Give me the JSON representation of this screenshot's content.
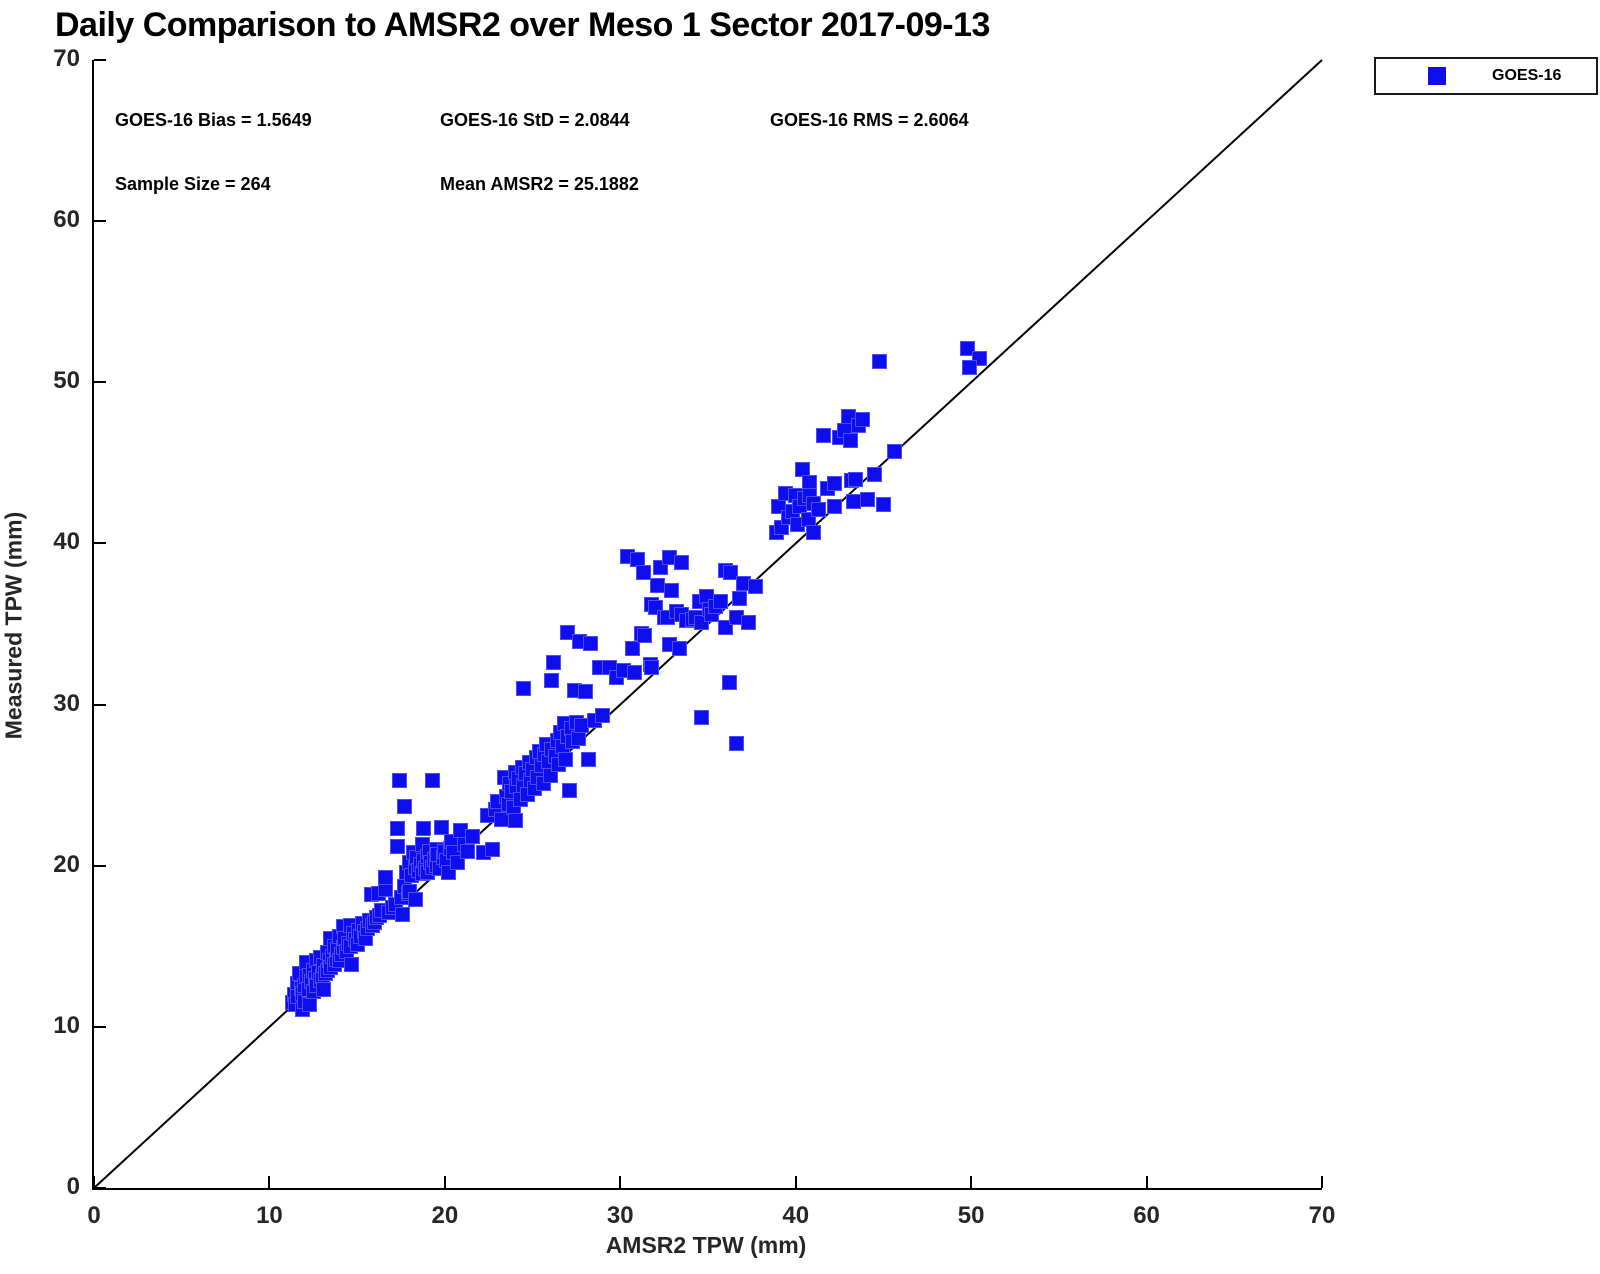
{
  "figure": {
    "title": "Daily Comparison to AMSR2 over Meso 1 Sector 2017-09-13",
    "stats": {
      "bias": "GOES-16 Bias = 1.5649",
      "std": "GOES-16 StD = 2.0844",
      "rms": "GOES-16 RMS = 2.6064",
      "sample": "Sample Size = 264",
      "mean": "Mean AMSR2 = 25.1882"
    },
    "legend": {
      "label": "GOES-16"
    },
    "colors": {
      "marker": "#0d0df0",
      "marker_edge": "#4d4df8",
      "axis": "#000000",
      "tick_text": "#262626",
      "reference_line": "#000000"
    }
  },
  "chart_data": {
    "type": "scatter",
    "title": "Daily Comparison to AMSR2 over Meso 1 Sector 2017-09-13",
    "xlabel": "AMSR2 TPW (mm)",
    "ylabel": "Measured TPW (mm)",
    "xlim": [
      0,
      70
    ],
    "ylim": [
      0,
      70
    ],
    "xticks": [
      0,
      10,
      20,
      30,
      40,
      50,
      60,
      70
    ],
    "yticks": [
      0,
      10,
      20,
      30,
      40,
      50,
      60,
      70
    ],
    "grid": false,
    "legend_position": "upper-right-outside",
    "reference_line": {
      "from": [
        0,
        0
      ],
      "to": [
        70,
        70
      ],
      "color": "#000000",
      "width": 2
    },
    "annotations": {
      "goes16_bias": 1.5649,
      "goes16_std": 2.0844,
      "goes16_rms": 2.6064,
      "sample_size": 264,
      "mean_amsr2": 25.1882
    },
    "series": [
      {
        "name": "GOES-16",
        "marker": "square",
        "color": "#0d0df0",
        "points": [
          [
            11.3,
            11.5
          ],
          [
            11.4,
            12.0
          ],
          [
            11.5,
            11.4
          ],
          [
            11.6,
            12.7
          ],
          [
            11.6,
            11.9
          ],
          [
            11.7,
            13.3
          ],
          [
            11.8,
            12.4
          ],
          [
            11.9,
            11.1
          ],
          [
            11.9,
            12.1
          ],
          [
            12.0,
            12.6
          ],
          [
            12.0,
            11.6
          ],
          [
            12.1,
            13.1
          ],
          [
            12.1,
            14.0
          ],
          [
            12.2,
            12.3
          ],
          [
            12.3,
            11.4
          ],
          [
            12.3,
            13.2
          ],
          [
            12.4,
            12.8
          ],
          [
            12.5,
            13.5
          ],
          [
            12.5,
            12.2
          ],
          [
            12.6,
            13.0
          ],
          [
            12.7,
            14.1
          ],
          [
            12.7,
            12.6
          ],
          [
            12.8,
            13.4
          ],
          [
            12.9,
            12.9
          ],
          [
            12.9,
            14.3
          ],
          [
            13.0,
            13.1
          ],
          [
            13.1,
            12.3
          ],
          [
            13.1,
            13.8
          ],
          [
            13.2,
            13.3
          ],
          [
            13.3,
            14.6
          ],
          [
            13.3,
            13.5
          ],
          [
            13.4,
            14.1
          ],
          [
            13.5,
            13.7
          ],
          [
            13.5,
            15.5
          ],
          [
            13.6,
            14.4
          ],
          [
            13.7,
            13.9
          ],
          [
            13.7,
            15.0
          ],
          [
            13.8,
            14.2
          ],
          [
            13.9,
            14.8
          ],
          [
            14.0,
            14.1
          ],
          [
            14.0,
            15.6
          ],
          [
            14.1,
            14.5
          ],
          [
            14.2,
            16.2
          ],
          [
            14.2,
            14.9
          ],
          [
            14.3,
            15.5
          ],
          [
            14.4,
            14.7
          ],
          [
            14.5,
            15.2
          ],
          [
            14.6,
            16.3
          ],
          [
            14.6,
            15.0
          ],
          [
            14.7,
            13.9
          ],
          [
            14.8,
            15.8
          ],
          [
            14.9,
            15.4
          ],
          [
            15.0,
            15.1
          ],
          [
            15.1,
            16.0
          ],
          [
            15.2,
            15.6
          ],
          [
            15.3,
            16.4
          ],
          [
            15.4,
            15.9
          ],
          [
            15.5,
            15.5
          ],
          [
            15.6,
            16.1
          ],
          [
            15.7,
            16.6
          ],
          [
            15.8,
            18.2
          ],
          [
            15.9,
            16.3
          ],
          [
            16.0,
            16.5
          ],
          [
            16.1,
            16.8
          ],
          [
            16.2,
            18.3
          ],
          [
            16.3,
            16.9
          ],
          [
            16.4,
            17.2
          ],
          [
            16.6,
            18.5
          ],
          [
            16.6,
            19.3
          ],
          [
            16.8,
            17.1
          ],
          [
            17.0,
            17.4
          ],
          [
            17.2,
            17.6
          ],
          [
            17.3,
            21.2
          ],
          [
            17.3,
            22.3
          ],
          [
            17.4,
            25.3
          ],
          [
            17.5,
            18.0
          ],
          [
            17.6,
            17.0
          ],
          [
            17.7,
            23.7
          ],
          [
            17.7,
            18.7
          ],
          [
            17.8,
            19.6
          ],
          [
            17.9,
            18.3
          ],
          [
            18.0,
            18.4
          ],
          [
            18.0,
            20.2
          ],
          [
            18.1,
            19.4
          ],
          [
            18.2,
            20.8
          ],
          [
            18.3,
            17.9
          ],
          [
            18.3,
            19.9
          ],
          [
            18.4,
            20.5
          ],
          [
            18.5,
            19.7
          ],
          [
            18.6,
            20.1
          ],
          [
            18.7,
            21.3
          ],
          [
            18.7,
            19.5
          ],
          [
            18.8,
            22.3
          ],
          [
            18.8,
            20.3
          ],
          [
            18.9,
            19.8
          ],
          [
            19.0,
            20.6
          ],
          [
            19.0,
            19.6
          ],
          [
            19.1,
            20.9
          ],
          [
            19.2,
            20.2
          ],
          [
            19.3,
            25.3
          ],
          [
            19.3,
            19.9
          ],
          [
            19.4,
            20.4
          ],
          [
            19.5,
            21.0
          ],
          [
            19.5,
            20.0
          ],
          [
            19.6,
            20.7
          ],
          [
            19.7,
            19.8
          ],
          [
            19.8,
            22.4
          ],
          [
            19.9,
            20.5
          ],
          [
            20.0,
            20.9
          ],
          [
            20.1,
            20.3
          ],
          [
            20.2,
            19.6
          ],
          [
            20.3,
            21.1
          ],
          [
            20.4,
            21.5
          ],
          [
            20.5,
            20.8
          ],
          [
            20.7,
            20.2
          ],
          [
            20.9,
            22.2
          ],
          [
            21.1,
            21.3
          ],
          [
            21.3,
            20.9
          ],
          [
            21.6,
            21.8
          ],
          [
            22.2,
            20.8
          ],
          [
            22.4,
            23.1
          ],
          [
            22.7,
            21.0
          ],
          [
            22.9,
            23.5
          ],
          [
            23.0,
            24.0
          ],
          [
            23.2,
            22.9
          ],
          [
            23.4,
            25.5
          ],
          [
            23.5,
            24.3
          ],
          [
            23.6,
            23.8
          ],
          [
            23.7,
            25.1
          ],
          [
            23.8,
            24.6
          ],
          [
            23.9,
            23.6
          ],
          [
            24.0,
            22.8
          ],
          [
            24.0,
            25.8
          ],
          [
            24.1,
            24.9
          ],
          [
            24.2,
            25.4
          ],
          [
            24.3,
            24.1
          ],
          [
            24.4,
            26.1
          ],
          [
            24.5,
            25.0
          ],
          [
            24.5,
            31.0
          ],
          [
            24.6,
            25.7
          ],
          [
            24.7,
            24.4
          ],
          [
            24.8,
            26.4
          ],
          [
            24.9,
            25.3
          ],
          [
            25.0,
            26.0
          ],
          [
            25.1,
            24.8
          ],
          [
            25.2,
            26.7
          ],
          [
            25.3,
            25.5
          ],
          [
            25.4,
            27.1
          ],
          [
            25.5,
            26.2
          ],
          [
            25.6,
            25.1
          ],
          [
            25.7,
            26.9
          ],
          [
            25.8,
            27.5
          ],
          [
            25.9,
            26.5
          ],
          [
            26.0,
            25.6
          ],
          [
            26.1,
            31.5
          ],
          [
            26.1,
            27.2
          ],
          [
            26.2,
            32.6
          ],
          [
            26.3,
            26.8
          ],
          [
            26.4,
            27.8
          ],
          [
            26.5,
            26.3
          ],
          [
            26.6,
            28.3
          ],
          [
            26.7,
            27.4
          ],
          [
            26.8,
            28.8
          ],
          [
            26.9,
            26.6
          ],
          [
            27.0,
            34.5
          ],
          [
            27.0,
            28.0
          ],
          [
            27.1,
            24.7
          ],
          [
            27.2,
            28.5
          ],
          [
            27.3,
            27.7
          ],
          [
            27.4,
            30.9
          ],
          [
            27.5,
            28.9
          ],
          [
            27.6,
            27.9
          ],
          [
            27.7,
            33.9
          ],
          [
            27.8,
            28.7
          ],
          [
            28.0,
            30.8
          ],
          [
            28.2,
            26.6
          ],
          [
            28.3,
            33.8
          ],
          [
            28.5,
            29.0
          ],
          [
            28.8,
            32.3
          ],
          [
            29.0,
            29.3
          ],
          [
            29.4,
            32.3
          ],
          [
            29.8,
            31.7
          ],
          [
            30.2,
            32.1
          ],
          [
            30.4,
            39.2
          ],
          [
            30.7,
            33.5
          ],
          [
            30.8,
            32.0
          ],
          [
            31.0,
            39.0
          ],
          [
            31.2,
            34.4
          ],
          [
            31.3,
            38.2
          ],
          [
            31.4,
            34.3
          ],
          [
            31.7,
            32.5
          ],
          [
            31.8,
            36.2
          ],
          [
            31.8,
            32.3
          ],
          [
            32.0,
            36.0
          ],
          [
            32.1,
            37.4
          ],
          [
            32.3,
            38.5
          ],
          [
            32.5,
            35.4
          ],
          [
            32.7,
            35.4
          ],
          [
            32.8,
            39.1
          ],
          [
            32.8,
            33.7
          ],
          [
            32.9,
            37.1
          ],
          [
            33.2,
            35.8
          ],
          [
            33.4,
            33.5
          ],
          [
            33.5,
            35.6
          ],
          [
            33.5,
            38.8
          ],
          [
            33.8,
            35.2
          ],
          [
            34.1,
            35.3
          ],
          [
            34.3,
            35.4
          ],
          [
            34.5,
            36.4
          ],
          [
            34.6,
            29.2
          ],
          [
            34.6,
            35.1
          ],
          [
            34.9,
            36.7
          ],
          [
            35.1,
            35.9
          ],
          [
            35.2,
            35.6
          ],
          [
            35.4,
            36.1
          ],
          [
            35.7,
            36.4
          ],
          [
            36.0,
            34.8
          ],
          [
            36.0,
            38.3
          ],
          [
            36.2,
            31.4
          ],
          [
            36.3,
            38.2
          ],
          [
            36.6,
            27.6
          ],
          [
            36.6,
            35.4
          ],
          [
            36.8,
            36.6
          ],
          [
            37.0,
            37.5
          ],
          [
            37.3,
            35.1
          ],
          [
            37.7,
            37.3
          ],
          [
            38.9,
            40.7
          ],
          [
            39.0,
            42.3
          ],
          [
            39.2,
            41.0
          ],
          [
            39.4,
            43.1
          ],
          [
            39.6,
            41.6
          ],
          [
            39.8,
            42.0
          ],
          [
            40.0,
            43.0
          ],
          [
            40.1,
            41.2
          ],
          [
            40.2,
            42.3
          ],
          [
            40.4,
            44.6
          ],
          [
            40.5,
            42.8
          ],
          [
            40.7,
            41.5
          ],
          [
            40.8,
            43.8
          ],
          [
            40.8,
            43.0
          ],
          [
            41.0,
            42.5
          ],
          [
            41.0,
            40.7
          ],
          [
            41.3,
            42.1
          ],
          [
            41.6,
            46.7
          ],
          [
            41.8,
            43.4
          ],
          [
            42.2,
            43.7
          ],
          [
            42.2,
            42.3
          ],
          [
            42.5,
            46.6
          ],
          [
            42.8,
            47.0
          ],
          [
            43.0,
            47.9
          ],
          [
            43.1,
            46.4
          ],
          [
            43.2,
            43.9
          ],
          [
            43.3,
            42.6
          ],
          [
            43.4,
            44.0
          ],
          [
            43.6,
            47.3
          ],
          [
            43.8,
            47.7
          ],
          [
            44.1,
            42.7
          ],
          [
            44.5,
            44.3
          ],
          [
            45.0,
            42.4
          ],
          [
            45.6,
            45.7
          ],
          [
            44.8,
            51.3
          ],
          [
            49.8,
            52.1
          ],
          [
            50.5,
            51.5
          ],
          [
            49.9,
            50.9
          ]
        ]
      }
    ]
  }
}
